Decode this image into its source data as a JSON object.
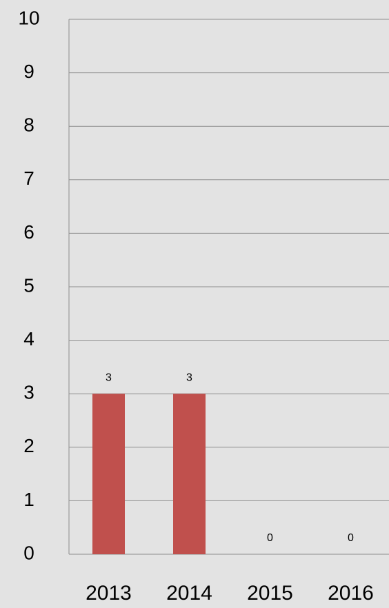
{
  "chart_data": {
    "type": "bar",
    "categories": [
      "2013",
      "2014",
      "2015",
      "2016"
    ],
    "values": [
      3,
      3,
      0,
      0
    ],
    "color": "#c0504d",
    "ylim": [
      0,
      10
    ],
    "yticks": [
      0,
      1,
      2,
      3,
      4,
      5,
      6,
      7,
      8,
      9,
      10
    ],
    "grid": true
  }
}
